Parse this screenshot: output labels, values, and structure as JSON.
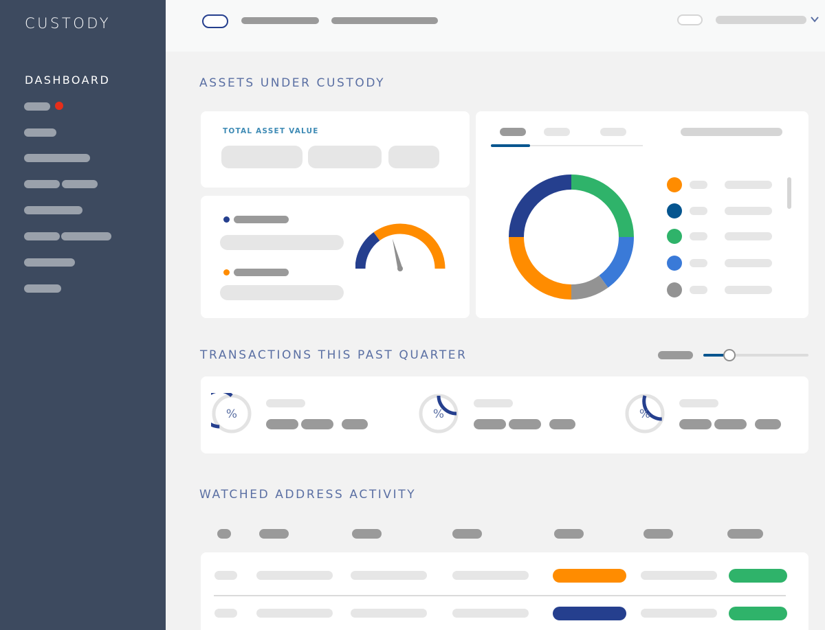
{
  "app": {
    "title": "CUSTODY"
  },
  "sidebar": {
    "active_label": "DASHBOARD"
  },
  "sections": {
    "assets": "ASSETS UNDER CUSTODY",
    "transactions": "TRANSACTIONS THIS PAST QUARTER",
    "watched": "WATCHED ADDRESS ACTIVITY"
  },
  "total_asset": {
    "label": "TOTAL ASSET VALUE"
  },
  "transactions": {
    "items": [
      {
        "symbol": "%",
        "progress": 0.62
      },
      {
        "symbol": "%",
        "progress": 0.25
      },
      {
        "symbol": "%",
        "progress": 0.3
      }
    ],
    "slider_level": 0.25
  },
  "chart_data": {
    "type": "pie",
    "values": [
      0.25,
      0.15,
      0.1,
      0.25,
      0.25
    ],
    "colors": [
      "#2fb36a",
      "#3a7ad8",
      "#939393",
      "#ff8c00",
      "#253f8e"
    ]
  },
  "gauge": {
    "value": 0.42,
    "colors": {
      "low": "#253f8e",
      "high": "#ff8c00"
    }
  },
  "legend": {
    "colors": [
      "#ff8c00",
      "#05558f",
      "#2fb36a",
      "#3a7ad8",
      "#939393"
    ]
  },
  "table": {
    "status_colors": {
      "row1": "#ff8c00",
      "row2": "#253f8e",
      "ok": "#2fb36a"
    }
  },
  "colors": {
    "sidebar": "#3d4a5f",
    "accent": "#5a6fa3",
    "navy": "#253f8e",
    "orange": "#ff8c00",
    "green": "#2fb36a",
    "blue": "#3a7ad8",
    "red_dot": "#e62e1a"
  }
}
